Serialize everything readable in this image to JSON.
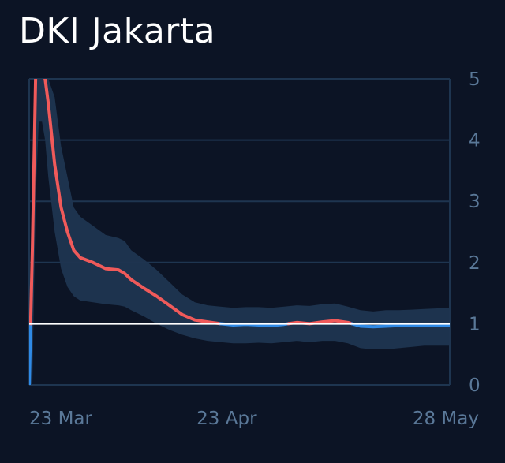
{
  "title": "DKI Jakarta",
  "chart_data": {
    "type": "line",
    "title": "DKI Jakarta",
    "xlabel": "",
    "ylabel": "",
    "ylim": [
      0,
      5
    ],
    "yticks": [
      "0",
      "1",
      "2",
      "3",
      "4",
      "5"
    ],
    "xticks": [
      {
        "label": "23 Mar",
        "day": 0
      },
      {
        "label": "23 Apr",
        "day": 31
      },
      {
        "label": "28 May",
        "day": 66
      }
    ],
    "xlim": [
      0,
      66
    ],
    "y_axis_side": "right",
    "grid": true,
    "reference_line": {
      "y": 1,
      "color": "#ffffff"
    },
    "colors": {
      "above_threshold": "#f05a5a",
      "below_threshold": "#2f8ae6",
      "band": "#1f3550",
      "grid": "#1e3550",
      "tick": "#5a7898"
    },
    "series": [
      {
        "day": [
          0,
          0.5,
          1,
          1.5,
          2,
          2.5,
          3,
          4,
          5,
          6,
          7,
          8,
          10,
          12,
          14,
          15,
          16,
          18,
          20,
          22,
          24,
          26,
          28,
          30,
          32,
          34,
          36,
          38,
          40,
          42,
          44,
          46,
          48,
          50,
          52,
          54,
          56,
          58,
          60,
          62,
          64,
          66
        ],
        "value": [
          0,
          2.2,
          5.0,
          5.2,
          5.1,
          5.0,
          4.6,
          3.6,
          2.9,
          2.5,
          2.2,
          2.08,
          2.0,
          1.9,
          1.88,
          1.82,
          1.72,
          1.58,
          1.45,
          1.3,
          1.15,
          1.06,
          1.03,
          1.0,
          0.98,
          0.99,
          0.98,
          0.97,
          0.99,
          1.02,
          1.0,
          1.03,
          1.05,
          1.02,
          0.96,
          0.95,
          0.96,
          0.97,
          0.98,
          0.98,
          0.98,
          0.98
        ],
        "lower": [
          0,
          0,
          3.0,
          4.3,
          4.3,
          4.0,
          3.4,
          2.5,
          1.9,
          1.6,
          1.45,
          1.38,
          1.35,
          1.32,
          1.3,
          1.28,
          1.22,
          1.12,
          1.0,
          0.9,
          0.82,
          0.76,
          0.72,
          0.7,
          0.68,
          0.68,
          0.69,
          0.68,
          0.7,
          0.72,
          0.7,
          0.72,
          0.72,
          0.68,
          0.6,
          0.58,
          0.58,
          0.6,
          0.62,
          0.64,
          0.64,
          0.64
        ],
        "upper": [
          0,
          3.5,
          5.0,
          5.0,
          5.0,
          5.0,
          5.0,
          4.7,
          3.9,
          3.4,
          2.9,
          2.75,
          2.6,
          2.45,
          2.4,
          2.35,
          2.2,
          2.05,
          1.88,
          1.68,
          1.48,
          1.35,
          1.3,
          1.28,
          1.26,
          1.27,
          1.27,
          1.26,
          1.28,
          1.3,
          1.29,
          1.32,
          1.33,
          1.28,
          1.22,
          1.2,
          1.22,
          1.22,
          1.23,
          1.24,
          1.25,
          1.25
        ]
      }
    ]
  }
}
